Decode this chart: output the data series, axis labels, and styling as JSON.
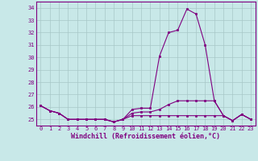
{
  "hours": [
    0,
    1,
    2,
    3,
    4,
    5,
    6,
    7,
    8,
    9,
    10,
    11,
    12,
    13,
    14,
    15,
    16,
    17,
    18,
    19,
    20,
    21,
    22,
    23
  ],
  "line1": [
    26.1,
    25.7,
    25.5,
    25.0,
    25.0,
    25.0,
    25.0,
    25.0,
    24.8,
    25.0,
    25.8,
    25.9,
    25.9,
    30.1,
    32.0,
    32.2,
    33.9,
    33.5,
    31.0,
    26.5,
    25.3,
    24.9,
    25.4,
    25.0
  ],
  "line2": [
    26.1,
    25.7,
    25.5,
    25.0,
    25.0,
    25.0,
    25.0,
    25.0,
    24.8,
    25.0,
    25.5,
    25.6,
    25.6,
    25.8,
    26.2,
    26.5,
    26.5,
    26.5,
    26.5,
    26.5,
    25.3,
    24.9,
    25.4,
    25.0
  ],
  "line3": [
    26.1,
    25.7,
    25.5,
    25.0,
    25.0,
    25.0,
    25.0,
    25.0,
    24.8,
    25.0,
    25.3,
    25.3,
    25.3,
    25.3,
    25.3,
    25.3,
    25.3,
    25.3,
    25.3,
    25.3,
    25.3,
    24.9,
    25.4,
    25.0
  ],
  "line_color": "#800080",
  "bg_color": "#c8e8e8",
  "grid_color": "#a8c8c8",
  "xlabel": "Windchill (Refroidissement éolien,°C)",
  "ylim": [
    24.5,
    34.5
  ],
  "yticks": [
    25,
    26,
    27,
    28,
    29,
    30,
    31,
    32,
    33,
    34
  ],
  "xlim": [
    -0.5,
    23.5
  ],
  "xticks": [
    0,
    1,
    2,
    3,
    4,
    5,
    6,
    7,
    8,
    9,
    10,
    11,
    12,
    13,
    14,
    15,
    16,
    17,
    18,
    19,
    20,
    21,
    22,
    23
  ]
}
